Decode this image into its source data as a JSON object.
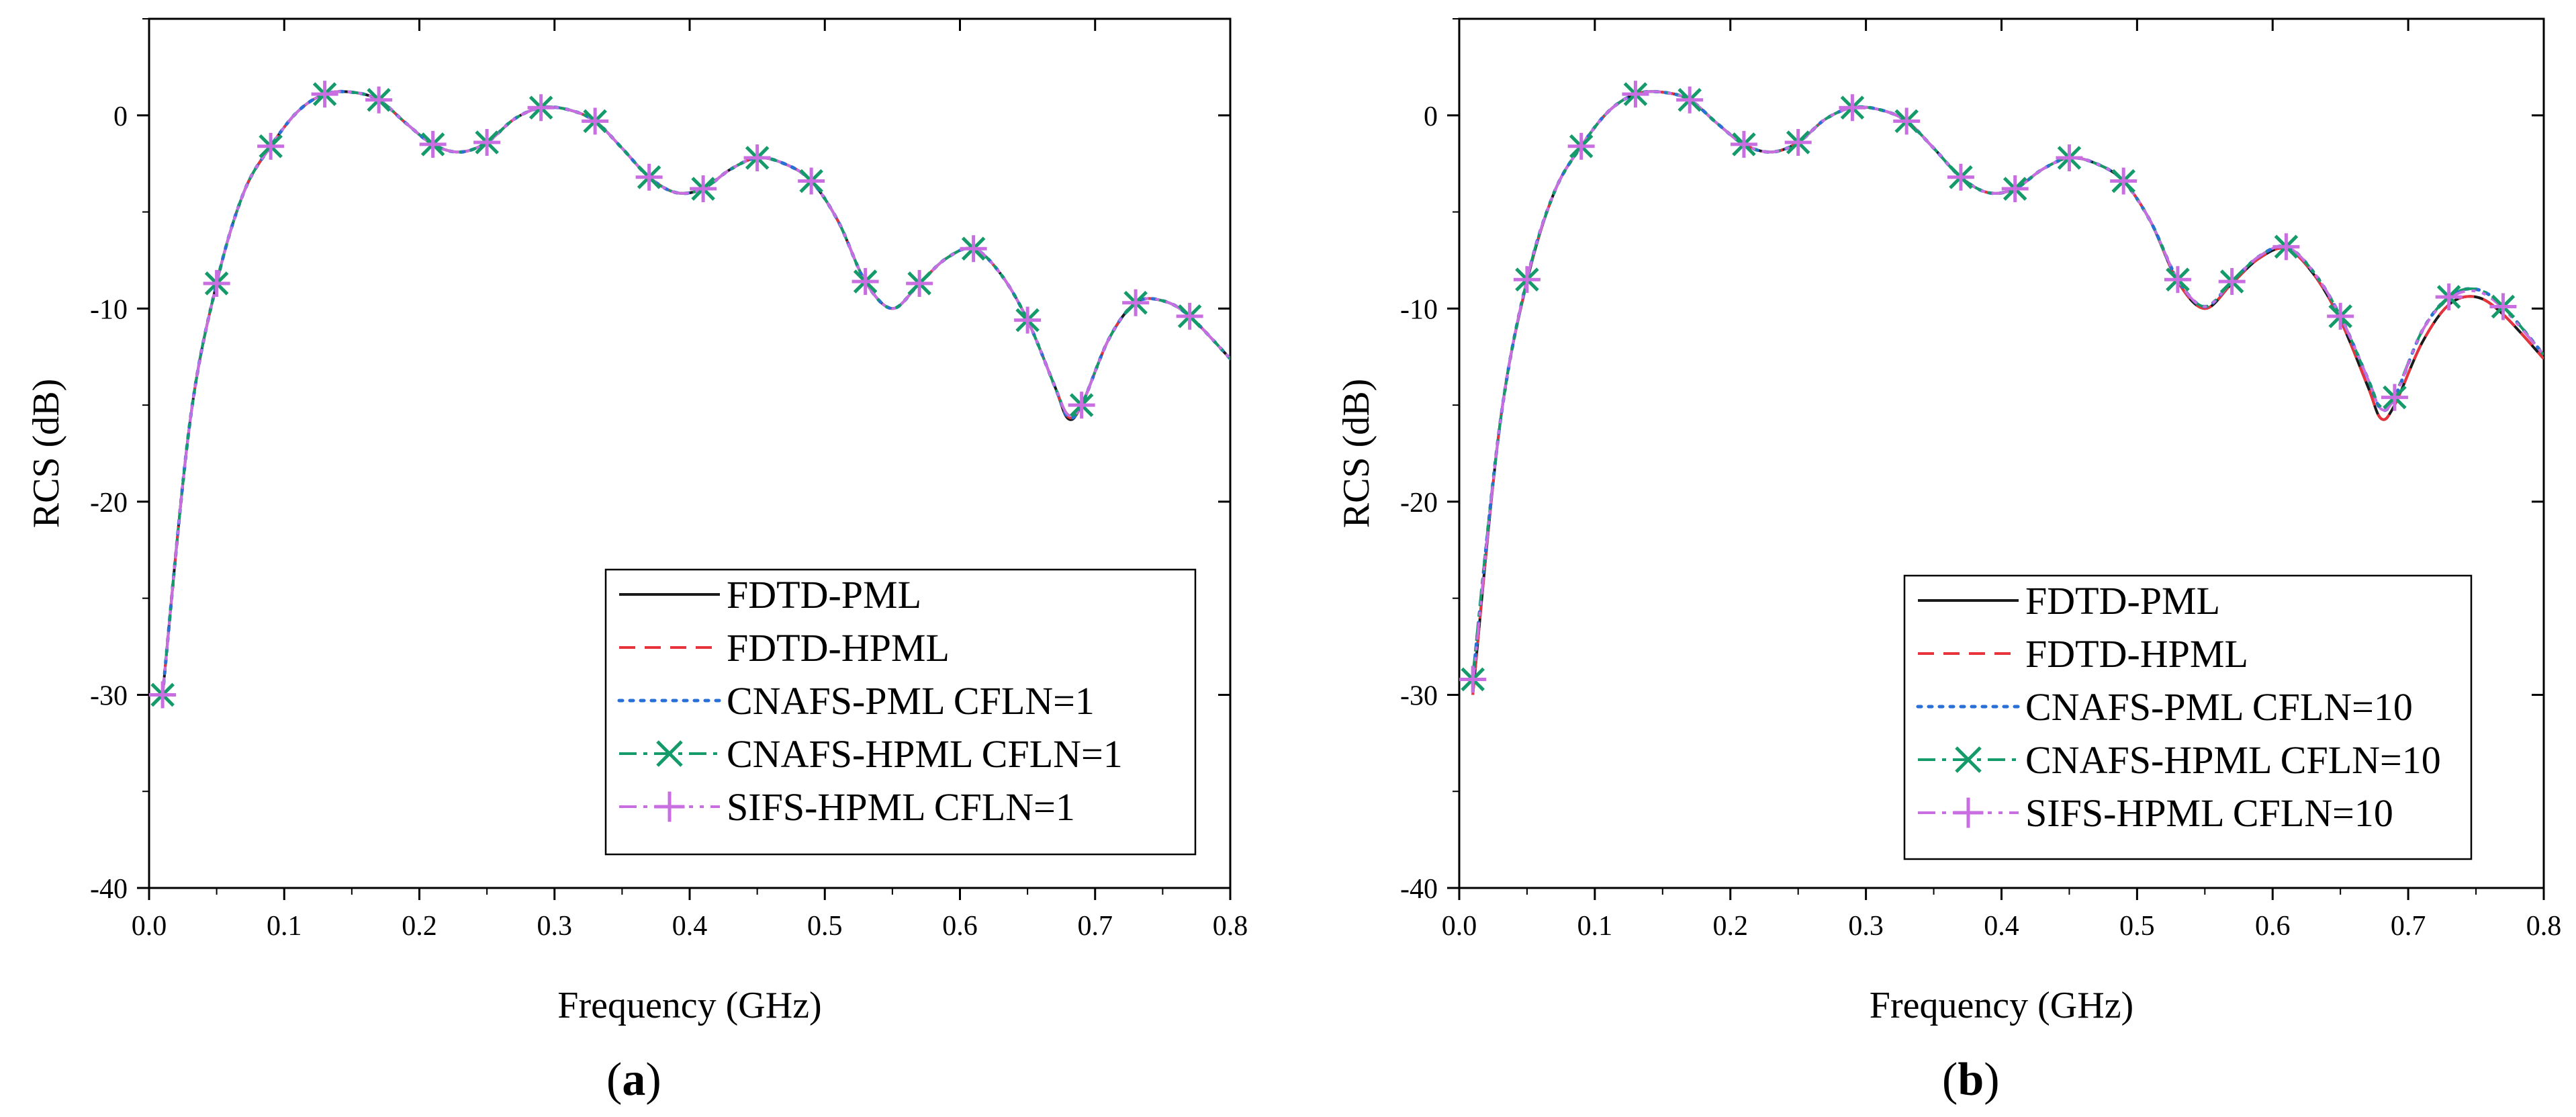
{
  "chart_data": [
    {
      "panel": "a",
      "label_open": "(",
      "label_letter": "a",
      "label_close": ")",
      "type": "line",
      "xlabel": "Frequency (GHz)",
      "ylabel": "RCS (dB)",
      "xlim": [
        0.0,
        0.8
      ],
      "ylim": [
        -40,
        5
      ],
      "xticks": [
        "0.0",
        "0.1",
        "0.2",
        "0.3",
        "0.4",
        "0.5",
        "0.6",
        "0.7",
        "0.8"
      ],
      "yticks": [
        "0",
        "-10",
        "-20",
        "-30",
        "-40"
      ],
      "legend_position": "bottom-right",
      "x": [
        0.01,
        0.03,
        0.05,
        0.07,
        0.09,
        0.11,
        0.13,
        0.15,
        0.17,
        0.19,
        0.21,
        0.23,
        0.25,
        0.27,
        0.29,
        0.31,
        0.33,
        0.35,
        0.37,
        0.39,
        0.41,
        0.43,
        0.45,
        0.47,
        0.49,
        0.51,
        0.53,
        0.55,
        0.57,
        0.59,
        0.61,
        0.63,
        0.65,
        0.67,
        0.68,
        0.69,
        0.71,
        0.73,
        0.75,
        0.77,
        0.8
      ],
      "series": [
        {
          "name": "FDTD-PML",
          "color": "#1a1a1a",
          "dash": "none",
          "marker": "none",
          "values": [
            -30,
            -16,
            -8.7,
            -4.0,
            -1.6,
            0.2,
            1.1,
            1.2,
            0.8,
            -0.4,
            -1.5,
            -1.9,
            -1.4,
            -0.2,
            0.4,
            0.3,
            -0.3,
            -1.7,
            -3.2,
            -4.0,
            -3.8,
            -2.8,
            -2.2,
            -2.5,
            -3.4,
            -5.5,
            -8.6,
            -10.0,
            -8.7,
            -7.4,
            -6.9,
            -8.2,
            -10.6,
            -14.0,
            -15.7,
            -15.0,
            -11.6,
            -9.7,
            -9.6,
            -10.4,
            -12.6
          ]
        },
        {
          "name": "FDTD-HPML",
          "color": "#e8323c",
          "dash": "24 14",
          "marker": "none",
          "values": [
            -30,
            -16,
            -8.7,
            -4.0,
            -1.6,
            0.2,
            1.1,
            1.2,
            0.8,
            -0.4,
            -1.5,
            -1.9,
            -1.4,
            -0.2,
            0.4,
            0.3,
            -0.3,
            -1.7,
            -3.2,
            -4.0,
            -3.8,
            -2.8,
            -2.2,
            -2.5,
            -3.4,
            -5.5,
            -8.6,
            -10.0,
            -8.7,
            -7.4,
            -6.9,
            -8.2,
            -10.6,
            -14.0,
            -15.6,
            -15.0,
            -11.6,
            -9.7,
            -9.6,
            -10.4,
            -12.6
          ]
        },
        {
          "name": "CNAFS-PML CFLN=1",
          "color": "#2a6fd6",
          "dash": "5 11",
          "marker": "none",
          "values": [
            -30,
            -16,
            -8.7,
            -4.0,
            -1.6,
            0.2,
            1.1,
            1.2,
            0.8,
            -0.4,
            -1.5,
            -1.9,
            -1.4,
            -0.2,
            0.4,
            0.3,
            -0.3,
            -1.7,
            -3.2,
            -4.0,
            -3.8,
            -2.8,
            -2.2,
            -2.5,
            -3.4,
            -5.5,
            -8.6,
            -10.0,
            -8.7,
            -7.4,
            -6.9,
            -8.2,
            -10.6,
            -14.0,
            -15.6,
            -15.0,
            -11.6,
            -9.7,
            -9.6,
            -10.4,
            -12.6
          ]
        },
        {
          "name": "CNAFS-HPML CFLN=1",
          "color": "#159a6a",
          "dash": "26 10 6 10",
          "marker": "x",
          "values": [
            -30,
            -16,
            -8.7,
            -4.0,
            -1.6,
            0.2,
            1.1,
            1.2,
            0.8,
            -0.4,
            -1.5,
            -1.9,
            -1.4,
            -0.2,
            0.4,
            0.3,
            -0.3,
            -1.7,
            -3.2,
            -4.0,
            -3.8,
            -2.8,
            -2.2,
            -2.5,
            -3.4,
            -5.5,
            -8.6,
            -10.0,
            -8.7,
            -7.4,
            -6.9,
            -8.2,
            -10.6,
            -14.0,
            -15.5,
            -15.0,
            -11.6,
            -9.7,
            -9.6,
            -10.4,
            -12.6
          ]
        },
        {
          "name": "SIFS-HPML CFLN=1",
          "color": "#c86ee0",
          "dash": "26 10 6 10 6 10",
          "marker": "+",
          "values": [
            -30,
            -16,
            -8.7,
            -4.0,
            -1.6,
            0.2,
            1.1,
            1.2,
            0.8,
            -0.4,
            -1.5,
            -1.9,
            -1.4,
            -0.2,
            0.4,
            0.3,
            -0.3,
            -1.7,
            -3.2,
            -4.0,
            -3.8,
            -2.8,
            -2.2,
            -2.5,
            -3.4,
            -5.5,
            -8.6,
            -10.0,
            -8.7,
            -7.4,
            -6.9,
            -8.2,
            -10.6,
            -14.0,
            -15.5,
            -15.0,
            -11.6,
            -9.7,
            -9.6,
            -10.4,
            -12.6
          ]
        }
      ],
      "marker_x": [
        0.01,
        0.05,
        0.09,
        0.13,
        0.17,
        0.21,
        0.25,
        0.29,
        0.33,
        0.37,
        0.41,
        0.45,
        0.49,
        0.53,
        0.57,
        0.61,
        0.65,
        0.69,
        0.73,
        0.77
      ],
      "marker_y": [
        -30,
        -8.7,
        -1.6,
        1.1,
        0.8,
        -1.5,
        -1.4,
        0.4,
        -0.3,
        -3.2,
        -3.8,
        -2.2,
        -3.4,
        -8.6,
        -8.7,
        -6.9,
        -10.6,
        -15.0,
        -9.7,
        -10.4
      ]
    },
    {
      "panel": "b",
      "label_open": "(",
      "label_letter": "b",
      "label_close": ")",
      "type": "line",
      "xlabel": "Frequency (GHz)",
      "ylabel": "RCS (dB)",
      "xlim": [
        0.0,
        0.8
      ],
      "ylim": [
        -40,
        5
      ],
      "xticks": [
        "0.0",
        "0.1",
        "0.2",
        "0.3",
        "0.4",
        "0.5",
        "0.6",
        "0.7",
        "0.8"
      ],
      "yticks": [
        "0",
        "-10",
        "-20",
        "-30",
        "-40"
      ],
      "legend_position": "bottom-right",
      "x": [
        0.01,
        0.03,
        0.05,
        0.07,
        0.09,
        0.11,
        0.13,
        0.15,
        0.17,
        0.19,
        0.21,
        0.23,
        0.25,
        0.27,
        0.29,
        0.31,
        0.33,
        0.35,
        0.37,
        0.39,
        0.41,
        0.43,
        0.45,
        0.47,
        0.49,
        0.51,
        0.53,
        0.55,
        0.57,
        0.59,
        0.61,
        0.63,
        0.65,
        0.67,
        0.68,
        0.69,
        0.71,
        0.73,
        0.75,
        0.77,
        0.8
      ],
      "series": [
        {
          "name": "FDTD-PML",
          "color": "#1a1a1a",
          "dash": "none",
          "marker": "none",
          "values": [
            -30,
            -16,
            -8.6,
            -4.0,
            -1.6,
            0.2,
            1.1,
            1.2,
            0.8,
            -0.4,
            -1.5,
            -1.9,
            -1.4,
            -0.2,
            0.4,
            0.3,
            -0.3,
            -1.7,
            -3.2,
            -4.0,
            -3.8,
            -2.8,
            -2.2,
            -2.5,
            -3.4,
            -5.5,
            -8.6,
            -10.0,
            -8.7,
            -7.4,
            -6.9,
            -8.2,
            -10.6,
            -14.0,
            -15.7,
            -15.0,
            -11.8,
            -9.8,
            -9.4,
            -10.3,
            -12.6
          ]
        },
        {
          "name": "FDTD-HPML",
          "color": "#e8323c",
          "dash": "24 14",
          "marker": "none",
          "values": [
            -30,
            -16,
            -8.6,
            -4.0,
            -1.6,
            0.2,
            1.1,
            1.2,
            0.8,
            -0.4,
            -1.5,
            -1.9,
            -1.4,
            -0.2,
            0.4,
            0.3,
            -0.3,
            -1.7,
            -3.2,
            -4.0,
            -3.8,
            -2.8,
            -2.2,
            -2.5,
            -3.4,
            -5.5,
            -8.6,
            -10.0,
            -8.7,
            -7.4,
            -6.9,
            -8.2,
            -10.6,
            -14.0,
            -15.7,
            -15.0,
            -11.8,
            -9.8,
            -9.4,
            -10.3,
            -12.6
          ]
        },
        {
          "name": "CNAFS-PML CFLN=10",
          "color": "#2a6fd6",
          "dash": "5 11",
          "marker": "none",
          "values": [
            -29.2,
            -16,
            -8.5,
            -4.0,
            -1.6,
            0.2,
            1.1,
            1.2,
            0.8,
            -0.4,
            -1.5,
            -1.9,
            -1.4,
            -0.2,
            0.4,
            0.3,
            -0.3,
            -1.7,
            -3.2,
            -4.0,
            -3.8,
            -2.8,
            -2.2,
            -2.5,
            -3.4,
            -5.5,
            -8.5,
            -9.9,
            -8.6,
            -7.3,
            -6.8,
            -8.1,
            -10.4,
            -13.6,
            -15.2,
            -14.6,
            -11.2,
            -9.4,
            -9.0,
            -9.9,
            -12.4
          ]
        },
        {
          "name": "CNAFS-HPML CFLN=10",
          "color": "#159a6a",
          "dash": "26 10 6 10",
          "marker": "x",
          "values": [
            -29.0,
            -16,
            -8.5,
            -4.0,
            -1.6,
            0.2,
            1.1,
            1.2,
            0.8,
            -0.4,
            -1.5,
            -1.9,
            -1.4,
            -0.2,
            0.4,
            0.3,
            -0.3,
            -1.7,
            -3.2,
            -4.0,
            -3.8,
            -2.8,
            -2.2,
            -2.5,
            -3.4,
            -5.5,
            -8.5,
            -9.9,
            -8.6,
            -7.3,
            -6.8,
            -8.1,
            -10.4,
            -13.6,
            -15.1,
            -14.5,
            -11.2,
            -9.4,
            -9.0,
            -9.9,
            -12.4
          ]
        },
        {
          "name": "SIFS-HPML CFLN=10",
          "color": "#c86ee0",
          "dash": "26 10 6 10 6 10",
          "marker": "+",
          "values": [
            -29.5,
            -16,
            -8.5,
            -4.0,
            -1.6,
            0.2,
            1.1,
            1.2,
            0.8,
            -0.4,
            -1.5,
            -1.9,
            -1.4,
            -0.2,
            0.4,
            0.3,
            -0.3,
            -1.7,
            -3.2,
            -4.0,
            -3.8,
            -2.8,
            -2.2,
            -2.5,
            -3.4,
            -5.5,
            -8.5,
            -9.9,
            -8.6,
            -7.3,
            -6.8,
            -8.1,
            -10.4,
            -13.6,
            -15.2,
            -14.6,
            -11.2,
            -9.5,
            -9.1,
            -10.0,
            -12.4
          ]
        }
      ],
      "marker_x": [
        0.01,
        0.05,
        0.09,
        0.13,
        0.17,
        0.21,
        0.25,
        0.29,
        0.33,
        0.37,
        0.41,
        0.45,
        0.49,
        0.53,
        0.57,
        0.61,
        0.65,
        0.69,
        0.73,
        0.77
      ],
      "marker_y": [
        -29.2,
        -8.5,
        -1.6,
        1.1,
        0.8,
        -1.5,
        -1.4,
        0.4,
        -0.3,
        -3.2,
        -3.8,
        -2.2,
        -3.4,
        -8.5,
        -8.6,
        -6.8,
        -10.4,
        -14.6,
        -9.4,
        -9.9
      ]
    }
  ]
}
